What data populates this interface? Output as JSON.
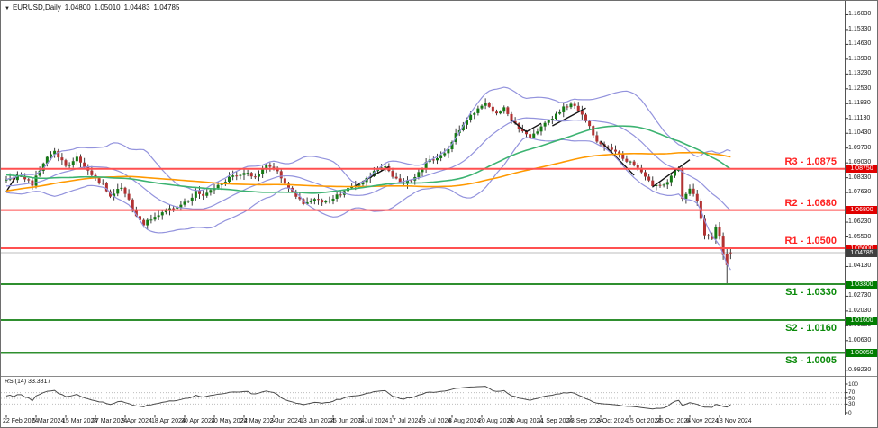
{
  "window": {
    "marker": "▼",
    "symbol": "EURUSD,Daily",
    "open": "1.04800",
    "high": "1.05010",
    "low": "1.04483",
    "close": "1.04785"
  },
  "price_axis": {
    "ticks": [
      "1.16030",
      "1.15330",
      "1.14630",
      "1.13930",
      "1.13230",
      "1.12530",
      "1.11830",
      "1.11130",
      "1.10430",
      "1.09730",
      "1.09030",
      "1.08330",
      "1.07630",
      "1.06930",
      "1.06230",
      "1.05530",
      "1.04830",
      "1.04130",
      "1.03430",
      "1.02730",
      "1.02030",
      "1.01330",
      "1.00630",
      "0.99930",
      "0.99230"
    ]
  },
  "date_axis": {
    "labels": [
      "22 Feb 2024",
      "5 Mar 2024",
      "15 Mar 2024",
      "27 Mar 2024",
      "8 Apr 2024",
      "18 Apr 2024",
      "30 Apr 2024",
      "10 May 2024",
      "22 May 2024",
      "3 Jun 2024",
      "13 Jun 2024",
      "25 Jun 2024",
      "5 Jul 2024",
      "17 Jul 2024",
      "29 Jul 2024",
      "8 Aug 2024",
      "20 Aug 2024",
      "30 Aug 2024",
      "11 Sep 2024",
      "23 Sep 2024",
      "3 Oct 2024",
      "15 Oct 2024",
      "25 Oct 2024",
      "6 Nov 2024",
      "18 Nov 2024"
    ]
  },
  "rsi_pane": {
    "label": "RSI(14) 33.3817",
    "axis_values": [
      100,
      70,
      50,
      30,
      0
    ],
    "dotted_levels": [
      70,
      50,
      30
    ]
  },
  "levels": [
    {
      "id": "R3",
      "label": "R3 - 1.0875",
      "price": 1.0875,
      "badge": "1.08750",
      "kind": "resistance"
    },
    {
      "id": "R2",
      "label": "R2 - 1.0680",
      "price": 1.068,
      "badge": "1.06800",
      "kind": "resistance"
    },
    {
      "id": "R1",
      "label": "R1 - 1.0500",
      "price": 1.05,
      "badge": "1.05000",
      "kind": "resistance"
    },
    {
      "id": "S1",
      "label": "S1 - 1.0330",
      "price": 1.033,
      "badge": "1.03300",
      "kind": "support"
    },
    {
      "id": "S2",
      "label": "S2 - 1.0160",
      "price": 1.016,
      "badge": "1.01600",
      "kind": "support"
    },
    {
      "id": "S3",
      "label": "S3 - 1.0005",
      "price": 1.0005,
      "badge": "1.00050",
      "kind": "support"
    }
  ],
  "current_price": {
    "value": 1.04785,
    "badge": "1.04785"
  },
  "colors": {
    "background": "#ffffff",
    "bull": "#157a15",
    "bear": "#b23232",
    "wick": "#3c3c3c",
    "bollinger": "#9393dd",
    "sma50": "#3cb371",
    "sma100": "#ff9900",
    "zigzag": "#141414",
    "resistance_line": "#ff5050",
    "resistance_text": "#ff1f1f",
    "resistance_badge": "#e00000",
    "support_line": "#2f8f2f",
    "support_text": "#0a8a0a",
    "support_badge": "#007d00",
    "price_line": "#bdbdbd",
    "price_badge": "#3f3f3f",
    "axis_text": "#1a1a1a",
    "rsi_line": "#4a4a4a",
    "rsi_level": "#bdbdbd",
    "separator": "#8a8a8a"
  },
  "chart_data": {
    "type": "candlestick",
    "symbol": "EURUSD",
    "timeframe": "Daily",
    "title": "EURUSD,Daily 1.04800 1.05010 1.04483 1.04785",
    "visible_price_range": [
      0.9896,
      1.1669
    ],
    "candles_visible": 196,
    "keyframes": [
      [
        -100,
        1.056
      ],
      [
        -78,
        1.066
      ],
      [
        -58,
        1.079
      ],
      [
        -44,
        1.094
      ],
      [
        -29,
        1.086
      ],
      [
        -14,
        1.0775
      ],
      [
        -7,
        1.0785
      ],
      [
        0,
        1.0822
      ],
      [
        4,
        1.0838
      ],
      [
        7,
        1.0802
      ],
      [
        11,
        1.0938
      ],
      [
        13,
        1.0955
      ],
      [
        16,
        1.089
      ],
      [
        19,
        1.0925
      ],
      [
        23,
        1.0845
      ],
      [
        26,
        1.08
      ],
      [
        28,
        1.0742
      ],
      [
        31,
        1.0788
      ],
      [
        33,
        1.073
      ],
      [
        35,
        1.0648
      ],
      [
        37,
        1.0615
      ],
      [
        40,
        1.0652
      ],
      [
        43,
        1.0672
      ],
      [
        46,
        1.07
      ],
      [
        49,
        1.0725
      ],
      [
        51,
        1.0768
      ],
      [
        53,
        1.0752
      ],
      [
        56,
        1.0782
      ],
      [
        59,
        1.082
      ],
      [
        62,
        1.0848
      ],
      [
        65,
        1.0862
      ],
      [
        67,
        1.0832
      ],
      [
        70,
        1.089
      ],
      [
        73,
        1.0868
      ],
      [
        75,
        1.0802
      ],
      [
        78,
        1.0742
      ],
      [
        80,
        1.0712
      ],
      [
        83,
        1.0737
      ],
      [
        86,
        1.0716
      ],
      [
        89,
        1.0747
      ],
      [
        92,
        1.0782
      ],
      [
        95,
        1.08
      ],
      [
        99,
        1.0862
      ],
      [
        102,
        1.088
      ],
      [
        104,
        1.0845
      ],
      [
        107,
        1.0805
      ],
      [
        110,
        1.0838
      ],
      [
        113,
        1.0902
      ],
      [
        116,
        1.0932
      ],
      [
        119,
        1.0962
      ],
      [
        121,
        1.104
      ],
      [
        124,
        1.1102
      ],
      [
        127,
        1.1162
      ],
      [
        129,
        1.1186
      ],
      [
        132,
        1.1132
      ],
      [
        134,
        1.1158
      ],
      [
        137,
        1.1082
      ],
      [
        139,
        1.1048
      ],
      [
        141,
        1.1015
      ],
      [
        144,
        1.1078
      ],
      [
        147,
        1.1112
      ],
      [
        150,
        1.1162
      ],
      [
        152,
        1.1182
      ],
      [
        155,
        1.1138
      ],
      [
        157,
        1.1072
      ],
      [
        159,
        1.1
      ],
      [
        162,
        1.0978
      ],
      [
        165,
        1.0938
      ],
      [
        168,
        1.0902
      ],
      [
        171,
        1.0862
      ],
      [
        174,
        1.0795
      ],
      [
        177,
        1.08
      ],
      [
        179,
        1.0838
      ],
      [
        181,
        1.0882
      ],
      [
        182,
        1.073
      ],
      [
        184,
        1.0782
      ],
      [
        186,
        1.0722
      ],
      [
        188,
        1.0568
      ],
      [
        190,
        1.0545
      ],
      [
        191,
        1.0598
      ],
      [
        192,
        1.0548
      ],
      [
        193,
        1.0475
      ]
    ],
    "tail_candles": [
      {
        "o": 1.0472,
        "h": 1.0498,
        "l": 1.0333,
        "c": 1.042
      },
      {
        "o": 1.048,
        "h": 1.0501,
        "l": 1.04483,
        "c": 1.04785
      }
    ],
    "zigzag": [
      [
        [
          0,
          1.0768
        ],
        [
          3,
          1.085
        ]
      ],
      [
        [
          94,
          1.0795
        ],
        [
          103,
          1.0885
        ]
      ],
      [
        [
          136,
          1.1105
        ],
        [
          140,
          1.105
        ]
      ],
      [
        [
          140,
          1.105
        ],
        [
          144,
          1.109
        ]
      ],
      [
        [
          147,
          1.1078
        ],
        [
          156,
          1.1162
        ]
      ],
      [
        [
          160,
          1.1005
        ],
        [
          169,
          1.0845
        ]
      ],
      [
        [
          174,
          1.079
        ],
        [
          184,
          1.0918
        ]
      ]
    ],
    "indicators": {
      "bollinger": {
        "period": 20,
        "deviation": 2
      },
      "sma_fast": 50,
      "sma_slow": 100,
      "rsi": {
        "period": 14,
        "current": 33.3817
      }
    }
  }
}
